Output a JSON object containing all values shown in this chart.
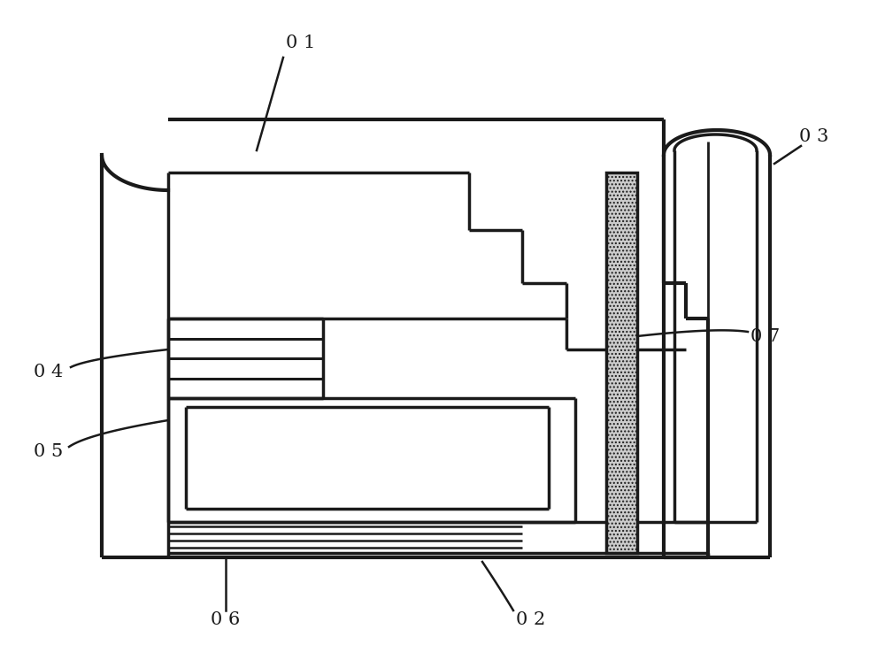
{
  "bg_color": "#ffffff",
  "line_color": "#1a1a1a",
  "lw": 2.5,
  "thin_lw": 1.5,
  "font_size": 15
}
